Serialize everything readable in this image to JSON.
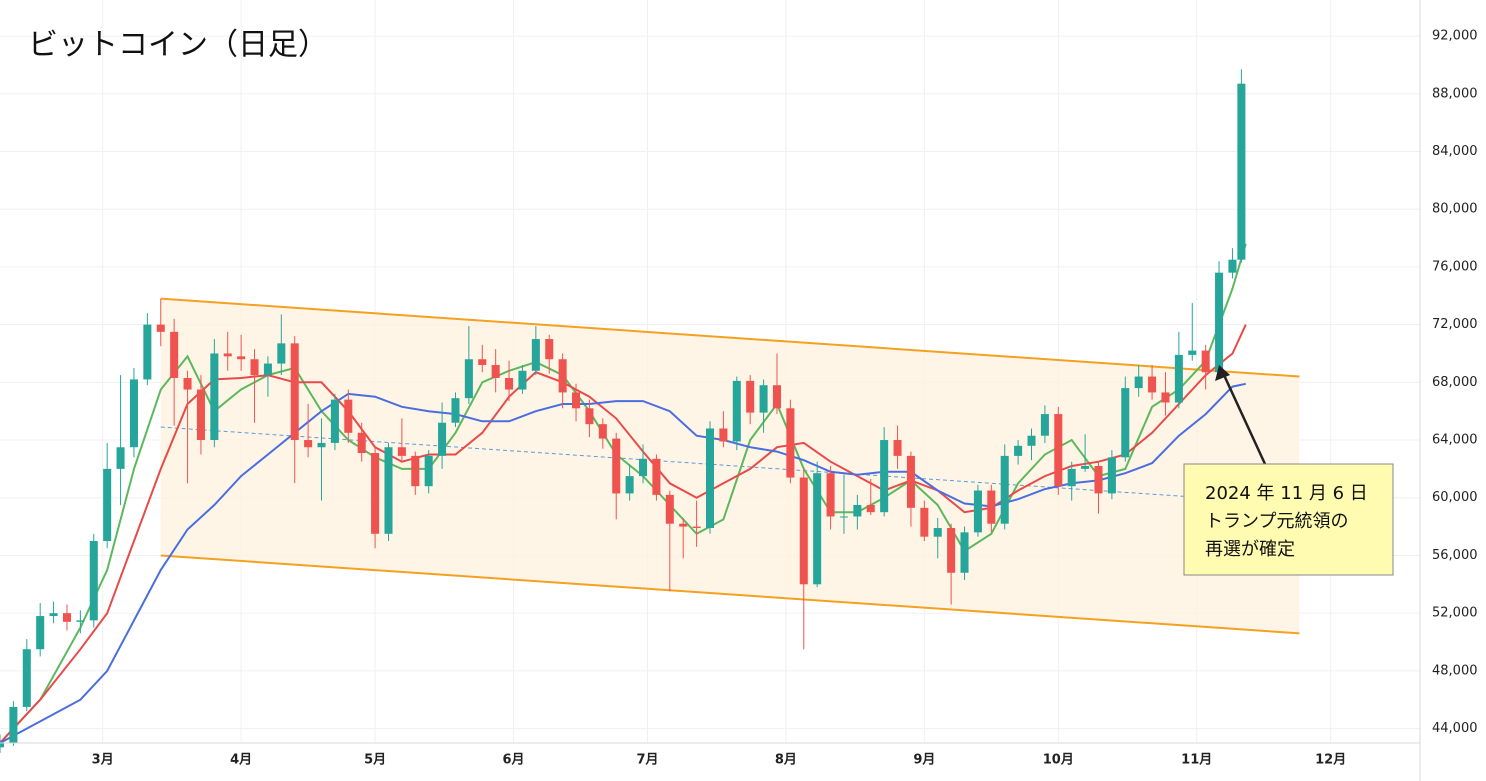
{
  "chart_data": {
    "type": "candlestick",
    "title": "ビットコイン（日足）",
    "xlim": [
      6,
      324
    ],
    "xticks": [
      {
        "value": 29,
        "label": "3月"
      },
      {
        "value": 60,
        "label": "4月"
      },
      {
        "value": 90,
        "label": "5月"
      },
      {
        "value": 121,
        "label": "6月"
      },
      {
        "value": 151,
        "label": "7月"
      },
      {
        "value": 182,
        "label": "8月"
      },
      {
        "value": 213,
        "label": "9月"
      },
      {
        "value": 243,
        "label": "10月"
      },
      {
        "value": 274,
        "label": "11月"
      },
      {
        "value": 304,
        "label": "12月"
      }
    ],
    "ylim": [
      43000,
      94500
    ],
    "yticks": [
      {
        "value": 44000,
        "label": "44,000"
      },
      {
        "value": 48000,
        "label": "48,000"
      },
      {
        "value": 52000,
        "label": "52,000"
      },
      {
        "value": 56000,
        "label": "56,000"
      },
      {
        "value": 60000,
        "label": "60,000"
      },
      {
        "value": 64000,
        "label": "64,000"
      },
      {
        "value": 68000,
        "label": "68,000"
      },
      {
        "value": 72000,
        "label": "72,000"
      },
      {
        "value": 76000,
        "label": "76,000"
      },
      {
        "value": 80000,
        "label": "80,000"
      },
      {
        "value": 84000,
        "label": "84,000"
      },
      {
        "value": 88000,
        "label": "88,000"
      },
      {
        "value": 92000,
        "label": "92,000"
      }
    ],
    "grid": true,
    "up_color": "#26a69a",
    "down_color": "#ef5350",
    "x": [
      6,
      9,
      12,
      15,
      18,
      21,
      24,
      27,
      30,
      33,
      36,
      39,
      42,
      45,
      48,
      51,
      54,
      57,
      60,
      63,
      66,
      69,
      72,
      75,
      78,
      81,
      84,
      87,
      90,
      93,
      96,
      99,
      102,
      105,
      108,
      111,
      114,
      117,
      120,
      123,
      126,
      129,
      132,
      135,
      138,
      141,
      144,
      147,
      150,
      153,
      156,
      159,
      162,
      165,
      168,
      171,
      174,
      177,
      180,
      183,
      186,
      189,
      192,
      195,
      198,
      201,
      204,
      207,
      210,
      213,
      216,
      219,
      222,
      225,
      228,
      231,
      234,
      237,
      240,
      243,
      246,
      249,
      252,
      255,
      258,
      261,
      264,
      267,
      270,
      273,
      276,
      279,
      282,
      284
    ],
    "open": [
      42700,
      43000,
      45500,
      49500,
      51800,
      52000,
      51400,
      51500,
      57000,
      62000,
      63500,
      68200,
      72000,
      71500,
      68300,
      67500,
      64000,
      70000,
      69800,
      69600,
      68500,
      69300,
      70700,
      64000,
      63500,
      63800,
      66800,
      64500,
      63100,
      57500,
      63500,
      62900,
      60800,
      62900,
      65200,
      66900,
      69600,
      69200,
      68300,
      67500,
      68800,
      71000,
      69600,
      67300,
      66200,
      65100,
      64100,
      60300,
      61500,
      62700,
      60200,
      58200,
      58000,
      57900,
      64800,
      63900,
      68100,
      65900,
      67800,
      66200,
      61400,
      54000,
      61700,
      58700,
      58700,
      59500,
      59000,
      64000,
      62900,
      59300,
      57300,
      57900,
      54800,
      57600,
      60500,
      58200,
      62900,
      63600,
      64300,
      65800,
      60800,
      62000,
      62200,
      60300,
      62800,
      67600,
      68400,
      67300,
      66600,
      69900,
      70200,
      68700,
      75600,
      76500
    ],
    "high": [
      43600,
      45900,
      50200,
      52700,
      52800,
      52600,
      52200,
      57500,
      63800,
      68500,
      69000,
      72800,
      73800,
      72400,
      68800,
      68500,
      71000,
      71500,
      71300,
      70300,
      69800,
      72700,
      71200,
      66500,
      65500,
      67200,
      67500,
      65200,
      63600,
      63800,
      65500,
      63200,
      63300,
      66600,
      67300,
      71900,
      70600,
      70300,
      69500,
      69200,
      71900,
      71300,
      70000,
      67900,
      66800,
      65500,
      64500,
      62300,
      63700,
      63000,
      60500,
      58600,
      59800,
      65300,
      66000,
      68400,
      68500,
      68200,
      70000,
      66800,
      62000,
      62500,
      62200,
      61600,
      60200,
      61300,
      64900,
      65000,
      63200,
      59800,
      58600,
      58200,
      58000,
      60900,
      60900,
      63700,
      64000,
      64800,
      66400,
      66300,
      62500,
      64400,
      62500,
      63300,
      68400,
      69200,
      69200,
      68700,
      71500,
      73500,
      70600,
      76400,
      77300,
      89700
    ],
    "low": [
      42300,
      42800,
      45200,
      49000,
      51300,
      50800,
      50600,
      51000,
      56500,
      59500,
      62800,
      67800,
      70500,
      65000,
      61000,
      63000,
      63500,
      68800,
      68800,
      65200,
      67000,
      68500,
      61000,
      62800,
      59800,
      63300,
      63800,
      62500,
      56500,
      57000,
      62500,
      60200,
      60300,
      62000,
      64900,
      66500,
      68700,
      67300,
      66700,
      67200,
      68500,
      68600,
      66200,
      65300,
      64200,
      63400,
      58500,
      59800,
      61000,
      59800,
      53500,
      55800,
      56600,
      57500,
      63500,
      63300,
      65100,
      64500,
      65800,
      61000,
      49500,
      53800,
      57800,
      57500,
      57800,
      58800,
      58700,
      62000,
      58000,
      57000,
      55800,
      52600,
      54300,
      57300,
      57600,
      57800,
      62300,
      62600,
      63800,
      60200,
      59800,
      61800,
      58900,
      59900,
      62500,
      67000,
      66800,
      65700,
      66200,
      69500,
      67500,
      68500,
      75200,
      76300
    ],
    "close": [
      43000,
      45500,
      49500,
      51800,
      52000,
      51400,
      51500,
      57000,
      62000,
      63500,
      68200,
      72000,
      71500,
      68300,
      67500,
      64000,
      70000,
      69800,
      69600,
      68500,
      69300,
      70700,
      64000,
      63500,
      63800,
      66800,
      64500,
      63100,
      57500,
      63500,
      62900,
      60800,
      62900,
      65200,
      66900,
      69600,
      69200,
      68300,
      67500,
      68800,
      71000,
      69600,
      67300,
      66200,
      65100,
      64100,
      60300,
      61500,
      62700,
      60200,
      58200,
      58000,
      57900,
      64800,
      63900,
      68100,
      65900,
      67800,
      66200,
      61400,
      54000,
      61700,
      58700,
      58700,
      59500,
      59000,
      64000,
      62900,
      59300,
      57300,
      57900,
      54800,
      57600,
      60500,
      58200,
      62900,
      63600,
      64300,
      65800,
      60800,
      62000,
      62200,
      60300,
      62800,
      67600,
      68400,
      67300,
      66600,
      69900,
      70200,
      68700,
      75600,
      76500,
      88700
    ],
    "ma_x": [
      6,
      15,
      24,
      30,
      36,
      42,
      48,
      54,
      60,
      66,
      72,
      78,
      84,
      90,
      96,
      102,
      108,
      114,
      120,
      126,
      132,
      138,
      144,
      150,
      156,
      162,
      168,
      174,
      180,
      186,
      192,
      198,
      204,
      210,
      216,
      222,
      228,
      234,
      240,
      246,
      252,
      258,
      264,
      270,
      276,
      282,
      285
    ],
    "moving_averages": [
      {
        "color": "#5cb85c",
        "values": [
          43000,
          46000,
          51000,
          55000,
          62000,
          67500,
          69800,
          66000,
          67500,
          68500,
          69000,
          66000,
          64000,
          62800,
          62000,
          62000,
          64500,
          68000,
          68800,
          69400,
          68500,
          66000,
          63000,
          61500,
          59500,
          57500,
          58500,
          64000,
          66500,
          62000,
          59000,
          59000,
          60000,
          61200,
          59500,
          56300,
          57500,
          61000,
          63000,
          64000,
          61500,
          62000,
          66300,
          67500,
          69500,
          74500,
          77600
        ]
      },
      {
        "color": "#e84a4a",
        "values": [
          43000,
          46000,
          49500,
          52000,
          57000,
          62000,
          66500,
          68200,
          68300,
          68500,
          68000,
          68000,
          66000,
          63500,
          62500,
          63000,
          63000,
          64500,
          67000,
          68700,
          68000,
          67000,
          65500,
          63200,
          61000,
          60000,
          61000,
          62000,
          63500,
          63800,
          62500,
          61500,
          60500,
          61200,
          60500,
          59000,
          59300,
          60500,
          61500,
          62200,
          62500,
          63000,
          64500,
          66500,
          68500,
          70000,
          72000
        ]
      },
      {
        "color": "#4a6ee0",
        "values": [
          43000,
          44500,
          46000,
          48000,
          51500,
          55000,
          57800,
          59500,
          61500,
          63000,
          64500,
          66000,
          67200,
          67000,
          66300,
          66000,
          65800,
          65300,
          65300,
          66000,
          66500,
          66500,
          66700,
          66700,
          66000,
          64300,
          64000,
          63500,
          63200,
          62600,
          61800,
          61600,
          61800,
          61800,
          60500,
          59600,
          59400,
          59900,
          60600,
          61000,
          61200,
          61700,
          62400,
          64300,
          65800,
          67700,
          67900
        ]
      }
    ],
    "channel": {
      "color": "#f5a020",
      "fill": "#fff3e0",
      "upper": {
        "x": [
          42,
          297
        ],
        "values": [
          73800,
          68400
        ]
      },
      "lower": {
        "x": [
          42,
          297
        ],
        "values": [
          56000,
          50600
        ]
      },
      "mid": {
        "x": [
          42,
          271
        ],
        "values": [
          64900,
          60100
        ],
        "color": "#5b9bd5"
      }
    },
    "annotation": {
      "lines": [
        "2024 年 11 月 6 日",
        "トランプ元統領の",
        "再選が確定"
      ],
      "x": 279,
      "y": 69200
    }
  }
}
